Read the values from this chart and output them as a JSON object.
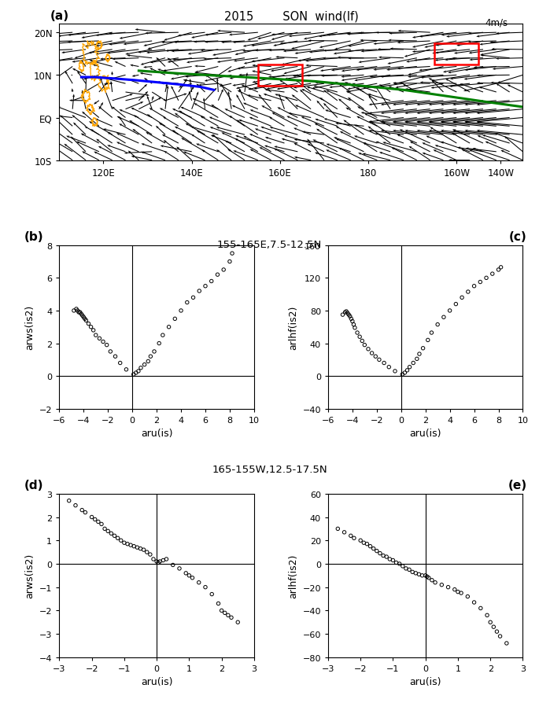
{
  "title_a": "2015        SON  wind(lf)",
  "ref_arrow_label": "4m/s",
  "panel_a_label": "(a)",
  "panel_b_label": "(b)",
  "panel_c_label": "(c)",
  "panel_d_label": "(d)",
  "panel_e_label": "(e)",
  "region_bc": "155-165E,7.5-12.5N",
  "region_de": "165-155W,12.5-17.5N",
  "b_xlabel": "aru(is)",
  "b_ylabel": "arws(is2)",
  "c_xlabel": "aru(is)",
  "c_ylabel": "arlhf(is2)",
  "d_xlabel": "aru(is)",
  "d_ylabel": "arws(is2)",
  "e_xlabel": "aru(is)",
  "e_ylabel": "arlhf(is2)",
  "b_xlim": [
    -6,
    10
  ],
  "b_ylim": [
    -2,
    8
  ],
  "c_xlim": [
    -6,
    10
  ],
  "c_ylim": [
    -40,
    160
  ],
  "d_xlim": [
    -3,
    3
  ],
  "d_ylim": [
    -4,
    3
  ],
  "e_xlim": [
    -3,
    3
  ],
  "e_ylim": [
    -80,
    60
  ],
  "b_xticks": [
    -6,
    -4,
    -2,
    0,
    2,
    4,
    6,
    8,
    10
  ],
  "b_yticks": [
    -2,
    0,
    2,
    4,
    6,
    8
  ],
  "c_xticks": [
    -6,
    -4,
    -2,
    0,
    2,
    4,
    6,
    8,
    10
  ],
  "c_yticks": [
    -40,
    0,
    40,
    80,
    120,
    160
  ],
  "d_xticks": [
    -3,
    -2,
    -1,
    0,
    1,
    2,
    3
  ],
  "d_yticks": [
    -4,
    -3,
    -2,
    -1,
    0,
    1,
    2,
    3
  ],
  "e_xticks": [
    -3,
    -2,
    -1,
    0,
    1,
    2,
    3
  ],
  "e_yticks": [
    -80,
    -60,
    -40,
    -20,
    0,
    20,
    40,
    60
  ],
  "scatter_b_x": [
    -4.8,
    -4.6,
    -4.5,
    -4.4,
    -4.3,
    -4.2,
    -4.1,
    -4.0,
    -3.9,
    -3.8,
    -3.6,
    -3.4,
    -3.2,
    -3.0,
    -2.7,
    -2.4,
    -2.1,
    -1.8,
    -1.4,
    -1.0,
    -0.5,
    0.1,
    0.3,
    0.5,
    0.7,
    1.0,
    1.3,
    1.5,
    1.8,
    2.2,
    2.5,
    3.0,
    3.5,
    4.0,
    4.5,
    5.0,
    5.5,
    6.0,
    6.5,
    7.0,
    7.5,
    8.0,
    8.2
  ],
  "scatter_b_y": [
    4.0,
    4.1,
    4.0,
    3.9,
    3.9,
    3.8,
    3.7,
    3.6,
    3.5,
    3.4,
    3.2,
    3.0,
    2.8,
    2.5,
    2.3,
    2.1,
    1.9,
    1.5,
    1.2,
    0.8,
    0.4,
    0.1,
    0.2,
    0.3,
    0.5,
    0.7,
    0.9,
    1.2,
    1.5,
    2.0,
    2.5,
    3.0,
    3.5,
    4.0,
    4.5,
    4.8,
    5.2,
    5.5,
    5.8,
    6.2,
    6.5,
    7.0,
    7.5
  ],
  "scatter_c_x": [
    -4.8,
    -4.6,
    -4.5,
    -4.4,
    -4.3,
    -4.2,
    -4.1,
    -4.0,
    -3.9,
    -3.8,
    -3.6,
    -3.4,
    -3.2,
    -3.0,
    -2.7,
    -2.4,
    -2.1,
    -1.8,
    -1.4,
    -1.0,
    -0.5,
    0.1,
    0.3,
    0.5,
    0.7,
    1.0,
    1.3,
    1.5,
    1.8,
    2.2,
    2.5,
    3.0,
    3.5,
    4.0,
    4.5,
    5.0,
    5.5,
    6.0,
    6.5,
    7.0,
    7.5,
    8.0,
    8.2
  ],
  "scatter_c_y": [
    75,
    78,
    79,
    77,
    75,
    73,
    70,
    67,
    63,
    59,
    53,
    48,
    43,
    38,
    33,
    28,
    24,
    20,
    16,
    11,
    6,
    2,
    4,
    7,
    11,
    16,
    21,
    27,
    34,
    44,
    53,
    63,
    72,
    80,
    88,
    96,
    103,
    110,
    115,
    120,
    125,
    130,
    133
  ],
  "scatter_d_x": [
    -2.7,
    -2.5,
    -2.3,
    -2.2,
    -2.0,
    -1.9,
    -1.8,
    -1.7,
    -1.6,
    -1.5,
    -1.4,
    -1.3,
    -1.2,
    -1.1,
    -1.0,
    -0.9,
    -0.8,
    -0.7,
    -0.6,
    -0.5,
    -0.4,
    -0.3,
    -0.2,
    -0.1,
    0.0,
    0.05,
    0.1,
    0.2,
    0.3,
    0.5,
    0.7,
    0.9,
    1.0,
    1.1,
    1.3,
    1.5,
    1.7,
    1.9,
    2.0,
    2.1,
    2.2,
    2.3,
    2.5
  ],
  "scatter_d_y": [
    2.7,
    2.5,
    2.3,
    2.2,
    2.0,
    1.9,
    1.8,
    1.7,
    1.5,
    1.4,
    1.3,
    1.2,
    1.1,
    1.0,
    0.9,
    0.85,
    0.8,
    0.75,
    0.7,
    0.65,
    0.6,
    0.5,
    0.4,
    0.2,
    0.1,
    0.05,
    0.1,
    0.15,
    0.2,
    -0.05,
    -0.2,
    -0.4,
    -0.5,
    -0.6,
    -0.8,
    -1.0,
    -1.3,
    -1.7,
    -2.0,
    -2.1,
    -2.2,
    -2.3,
    -2.5
  ],
  "scatter_e_x": [
    -2.7,
    -2.5,
    -2.3,
    -2.2,
    -2.0,
    -1.9,
    -1.8,
    -1.7,
    -1.6,
    -1.5,
    -1.4,
    -1.3,
    -1.2,
    -1.1,
    -1.0,
    -0.9,
    -0.8,
    -0.7,
    -0.6,
    -0.5,
    -0.4,
    -0.3,
    -0.2,
    -0.1,
    0.0,
    0.05,
    0.1,
    0.2,
    0.3,
    0.5,
    0.7,
    0.9,
    1.0,
    1.1,
    1.3,
    1.5,
    1.7,
    1.9,
    2.0,
    2.1,
    2.2,
    2.3,
    2.5
  ],
  "scatter_e_y": [
    30,
    27,
    24,
    22,
    20,
    18,
    17,
    15,
    13,
    11,
    9,
    7,
    6,
    4,
    3,
    1,
    0,
    -2,
    -4,
    -5,
    -7,
    -8,
    -9,
    -10,
    -10,
    -11,
    -12,
    -14,
    -16,
    -18,
    -20,
    -22,
    -24,
    -25,
    -28,
    -33,
    -38,
    -44,
    -50,
    -54,
    -58,
    -62,
    -68
  ]
}
